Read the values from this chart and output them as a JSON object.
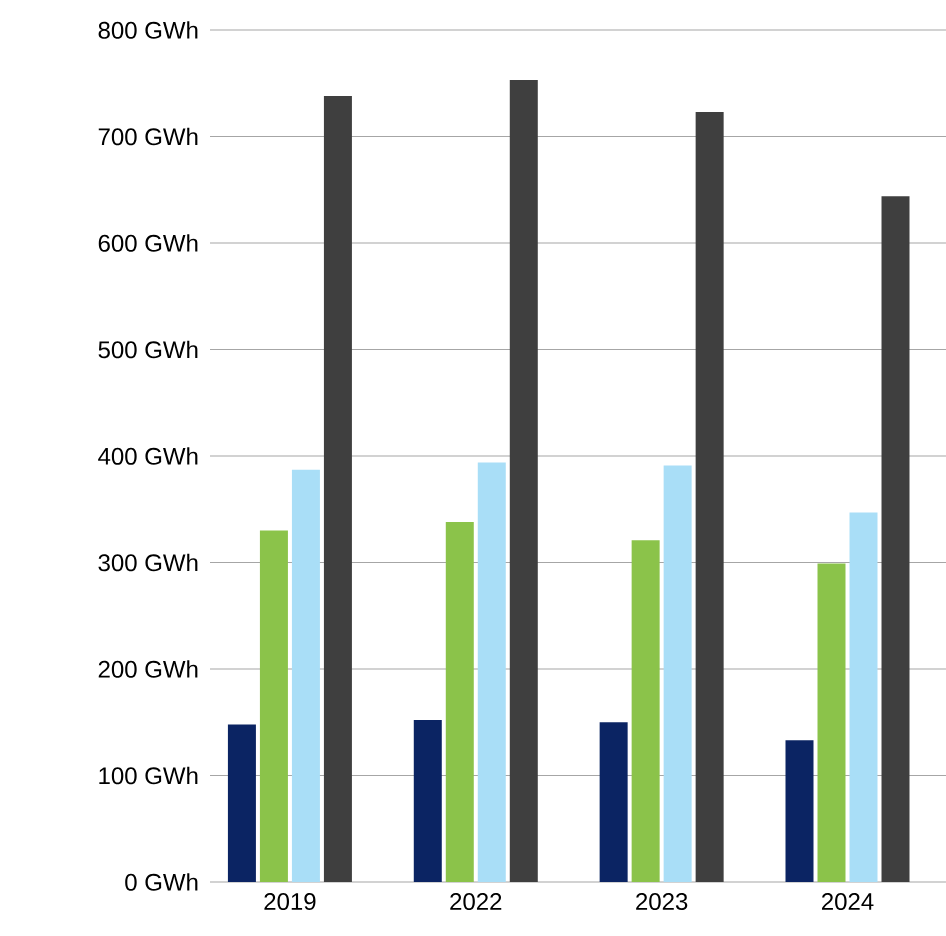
{
  "chart_data": {
    "type": "bar",
    "categories": [
      "2019",
      "2022",
      "2023",
      "2024"
    ],
    "series": [
      {
        "color": "#0b2463",
        "values": [
          148,
          152,
          150,
          133
        ]
      },
      {
        "color": "#8bc34a",
        "values": [
          330,
          338,
          321,
          299
        ]
      },
      {
        "color": "#a9def7",
        "values": [
          387,
          394,
          391,
          347
        ]
      },
      {
        "color": "#3f3f3f",
        "values": [
          738,
          753,
          723,
          644
        ]
      }
    ],
    "ylim": [
      0,
      800
    ],
    "yticks": [
      {
        "value": 0,
        "label": "0 GWh"
      },
      {
        "value": 100,
        "label": "100 GWh"
      },
      {
        "value": 200,
        "label": "200 GWh"
      },
      {
        "value": 300,
        "label": "300 GWh"
      },
      {
        "value": 400,
        "label": "400 GWh"
      },
      {
        "value": 500,
        "label": "500 GWh"
      },
      {
        "value": 600,
        "label": "600 GWh"
      },
      {
        "value": 700,
        "label": "700 GWh"
      },
      {
        "value": 800,
        "label": "800 GWh"
      }
    ],
    "grid": "y"
  }
}
